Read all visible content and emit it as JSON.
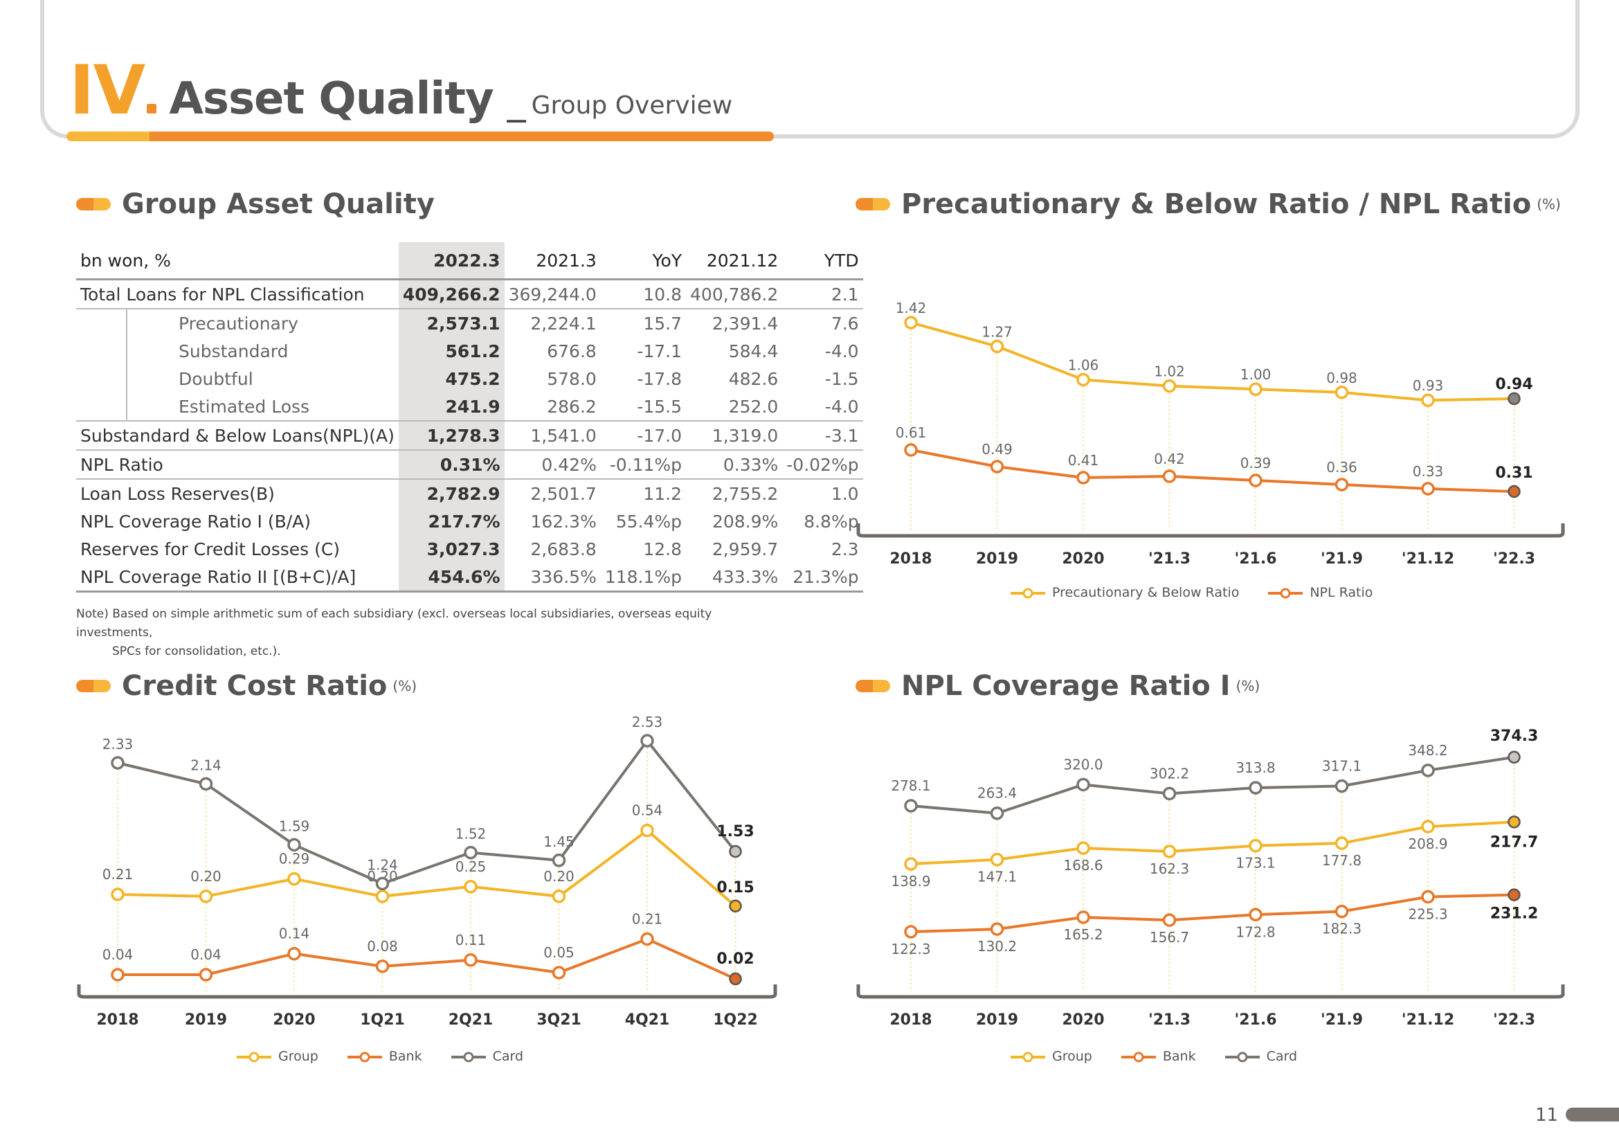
{
  "header": {
    "roman": "IV",
    "title": "Asset Quality",
    "separator": "_",
    "subtitle": "Group Overview"
  },
  "table_section": {
    "title": "Group Asset Quality",
    "columns": [
      "bn won, %",
      "2022.3",
      "2021.3",
      "YoY",
      "2021.12",
      "YTD"
    ],
    "rows": [
      {
        "label": "Total Loans for NPL Classification",
        "indent": false,
        "values": [
          "409,266.2",
          "369,244.0",
          "10.8",
          "400,786.2",
          "2.1"
        ]
      },
      {
        "label": "Precautionary",
        "indent": true,
        "values": [
          "2,573.1",
          "2,224.1",
          "15.7",
          "2,391.4",
          "7.6"
        ]
      },
      {
        "label": "Substandard",
        "indent": true,
        "values": [
          "561.2",
          "676.8",
          "-17.1",
          "584.4",
          "-4.0"
        ]
      },
      {
        "label": "Doubtful",
        "indent": true,
        "values": [
          "475.2",
          "578.0",
          "-17.8",
          "482.6",
          "-1.5"
        ]
      },
      {
        "label": "Estimated Loss",
        "indent": true,
        "values": [
          "241.9",
          "286.2",
          "-15.5",
          "252.0",
          "-4.0"
        ]
      },
      {
        "label": "Substandard & Below Loans(NPL)(A)",
        "indent": false,
        "values": [
          "1,278.3",
          "1,541.0",
          "-17.0",
          "1,319.0",
          "-3.1"
        ]
      },
      {
        "label": "NPL Ratio",
        "indent": false,
        "values": [
          "0.31%",
          "0.42%",
          "-0.11%p",
          "0.33%",
          "-0.02%p"
        ]
      },
      {
        "label": "Loan Loss Reserves(B)",
        "indent": false,
        "values": [
          "2,782.9",
          "2,501.7",
          "11.2",
          "2,755.2",
          "1.0"
        ]
      },
      {
        "label": "NPL Coverage Ratio I (B/A)",
        "indent": false,
        "values": [
          "217.7%",
          "162.3%",
          "55.4%p",
          "208.9%",
          "8.8%p"
        ]
      },
      {
        "label": "Reserves for Credit Losses (C)",
        "indent": false,
        "values": [
          "3,027.3",
          "2,683.8",
          "12.8",
          "2,959.7",
          "2.3"
        ]
      },
      {
        "label": "NPL Coverage Ratio II [(B+C)/A]",
        "indent": false,
        "values": [
          "454.6%",
          "336.5%",
          "118.1%p",
          "433.3%",
          "21.3%p"
        ]
      }
    ],
    "note_line1": "Note) Based on simple arithmetic sum of each subsidiary (excl. overseas local subsidiaries, overseas equity investments,",
    "note_line2": "SPCs for consolidation, etc.)."
  },
  "chart_data": [
    {
      "id": "precautionary",
      "type": "line",
      "title": "Precautionary & Below Ratio / NPL Ratio",
      "unit": "(%)",
      "categories": [
        "2018",
        "2019",
        "2020",
        "'21.3",
        "'21.6",
        "'21.9",
        "'21.12",
        "'22.3"
      ],
      "series": [
        {
          "name": "Precautionary & Below Ratio",
          "color": "#f3b427",
          "values": [
            1.42,
            1.27,
            1.06,
            1.02,
            1.0,
            0.98,
            0.93,
            0.94
          ],
          "labels": [
            "1.42",
            "1.27",
            "1.06",
            "1.02",
            "1.00",
            "0.98",
            "0.93",
            "0.94"
          ]
        },
        {
          "name": "NPL Ratio",
          "color": "#e8782a",
          "values": [
            0.61,
            0.49,
            0.41,
            0.42,
            0.39,
            0.36,
            0.33,
            0.31
          ],
          "labels": [
            "0.61",
            "0.49",
            "0.41",
            "0.42",
            "0.39",
            "0.36",
            "0.33",
            "0.31"
          ]
        }
      ]
    },
    {
      "id": "credit",
      "type": "line",
      "title": "Credit Cost Ratio",
      "unit": "(%)",
      "categories": [
        "2018",
        "2019",
        "2020",
        "1Q21",
        "2Q21",
        "3Q21",
        "4Q21",
        "1Q22"
      ],
      "series": [
        {
          "name": "Group",
          "color": "#f3b427",
          "values": [
            0.21,
            0.2,
            0.29,
            0.2,
            0.25,
            0.2,
            0.54,
            0.15
          ],
          "labels": [
            "0.21",
            "0.20",
            "0.29",
            "0.20",
            "0.25",
            "0.20",
            "0.54",
            "0.15"
          ]
        },
        {
          "name": "Bank",
          "color": "#e8782a",
          "values": [
            0.04,
            0.04,
            0.14,
            0.08,
            0.11,
            0.05,
            0.21,
            0.02
          ],
          "labels": [
            "0.04",
            "0.04",
            "0.14",
            "0.08",
            "0.11",
            "0.05",
            "0.21",
            "0.02"
          ]
        },
        {
          "name": "Card",
          "color": "#7a746f",
          "values": [
            2.33,
            2.14,
            1.59,
            1.24,
            1.52,
            1.45,
            2.53,
            1.53
          ],
          "labels": [
            "2.33",
            "2.14",
            "1.59",
            "1.24",
            "1.52",
            "1.45",
            "2.53",
            "1.53"
          ]
        }
      ]
    },
    {
      "id": "coverage",
      "type": "line",
      "title": "NPL Coverage Ratio I",
      "unit": "(%)",
      "categories": [
        "2018",
        "2019",
        "2020",
        "'21.3",
        "'21.6",
        "'21.9",
        "'21.12",
        "'22.3"
      ],
      "series": [
        {
          "name": "Group",
          "color": "#f3b427",
          "values": [
            138.9,
            147.1,
            168.6,
            162.3,
            173.1,
            177.8,
            208.9,
            217.7
          ],
          "labels": [
            "138.9",
            "147.1",
            "168.6",
            "162.3",
            "173.1",
            "177.8",
            "208.9",
            "217.7"
          ]
        },
        {
          "name": "Bank",
          "color": "#e8782a",
          "values": [
            122.3,
            130.2,
            165.2,
            156.7,
            172.8,
            182.3,
            225.3,
            231.2
          ],
          "labels": [
            "122.3",
            "130.2",
            "165.2",
            "156.7",
            "172.8",
            "182.3",
            "225.3",
            "231.2"
          ]
        },
        {
          "name": "Card",
          "color": "#7a746f",
          "values": [
            278.1,
            263.4,
            320.0,
            302.2,
            313.8,
            317.1,
            348.2,
            374.3
          ],
          "labels": [
            "278.1",
            "263.4",
            "320.0",
            "302.2",
            "313.8",
            "317.1",
            "348.2",
            "374.3"
          ]
        }
      ]
    }
  ],
  "page_number": "11"
}
